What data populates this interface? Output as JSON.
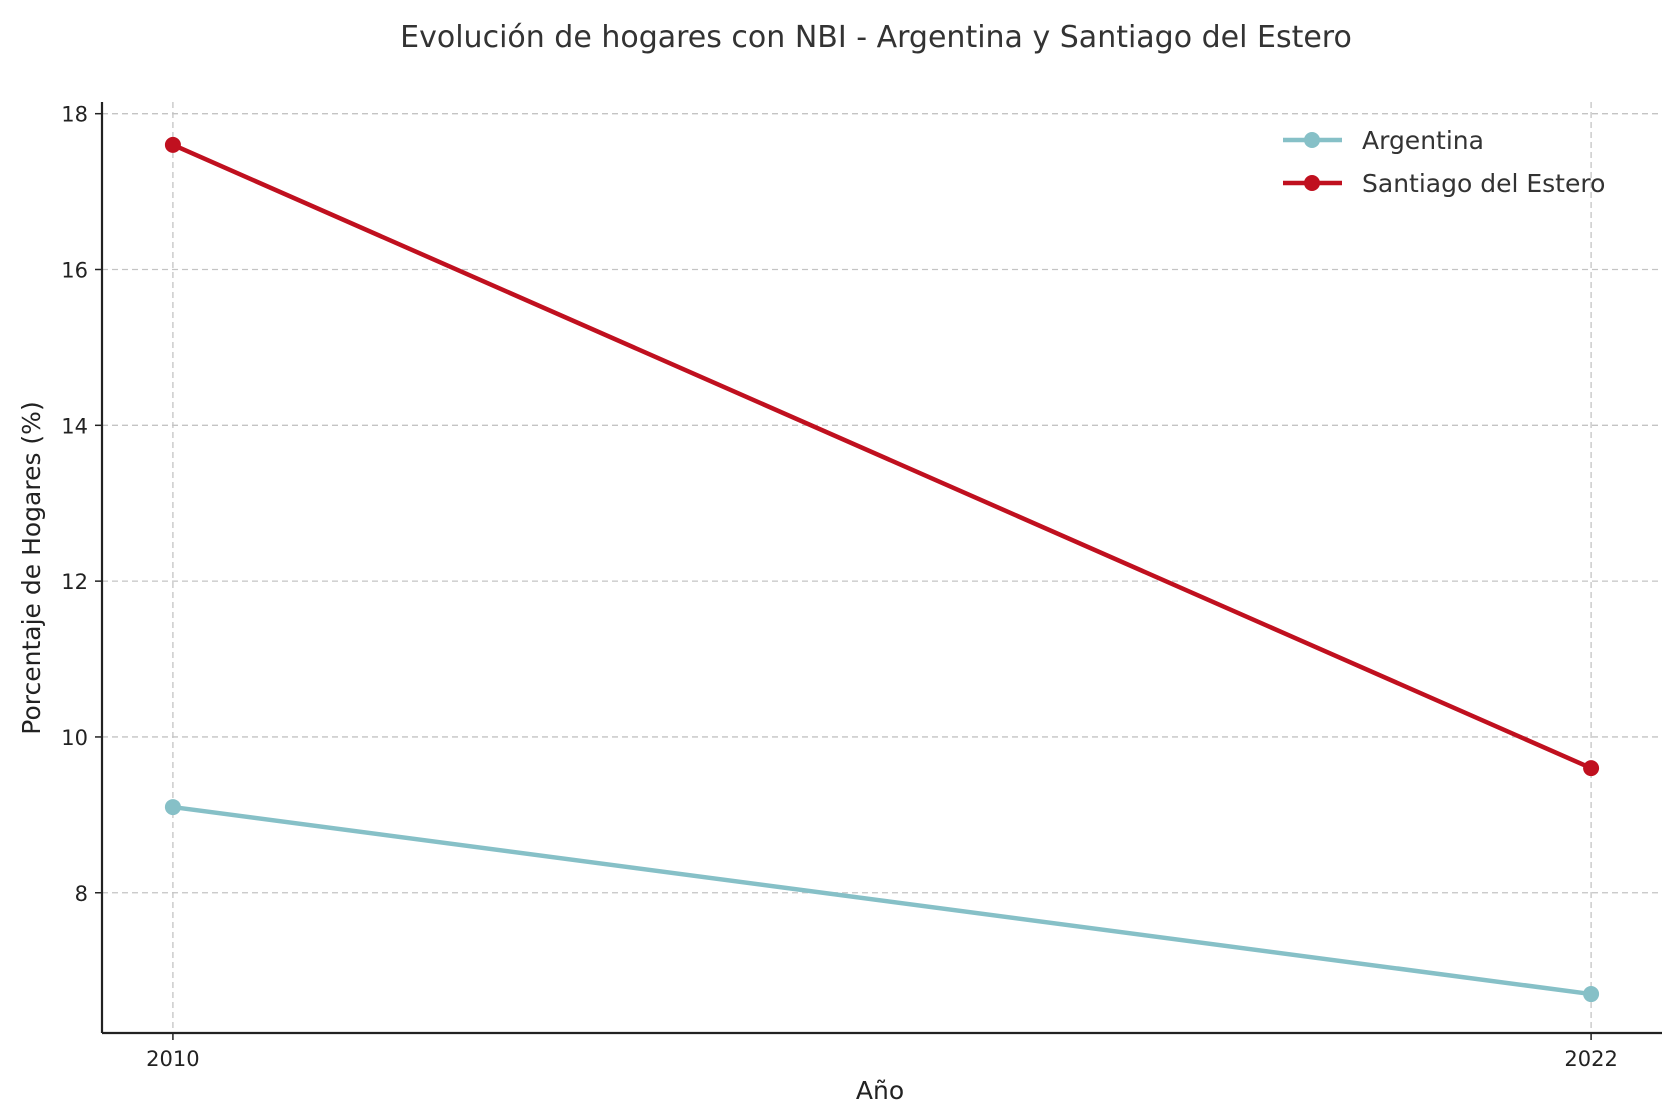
{
  "chart_data": {
    "type": "line",
    "title": "Evolución de hogares con NBI - Argentina y Santiago del Estero",
    "xlabel": "Año",
    "ylabel": "Porcentaje de Hogares (%)",
    "x": [
      2010,
      2022
    ],
    "x_tick_labels": [
      "2010",
      "2022"
    ],
    "y_ticks": [
      8,
      10,
      12,
      14,
      16,
      18
    ],
    "y_tick_labels": [
      "8",
      "10",
      "12",
      "14",
      "16",
      "18"
    ],
    "xlim": [
      2009.4,
      2022.6
    ],
    "ylim": [
      6.2,
      18.15
    ],
    "grid": true,
    "legend_position": "top-right",
    "series": [
      {
        "name": "Argentina",
        "values": [
          9.1,
          6.7
        ],
        "color": "#86c0c7"
      },
      {
        "name": "Santiago del Estero",
        "values": [
          17.6,
          9.6
        ],
        "color": "#c0101f"
      }
    ]
  }
}
